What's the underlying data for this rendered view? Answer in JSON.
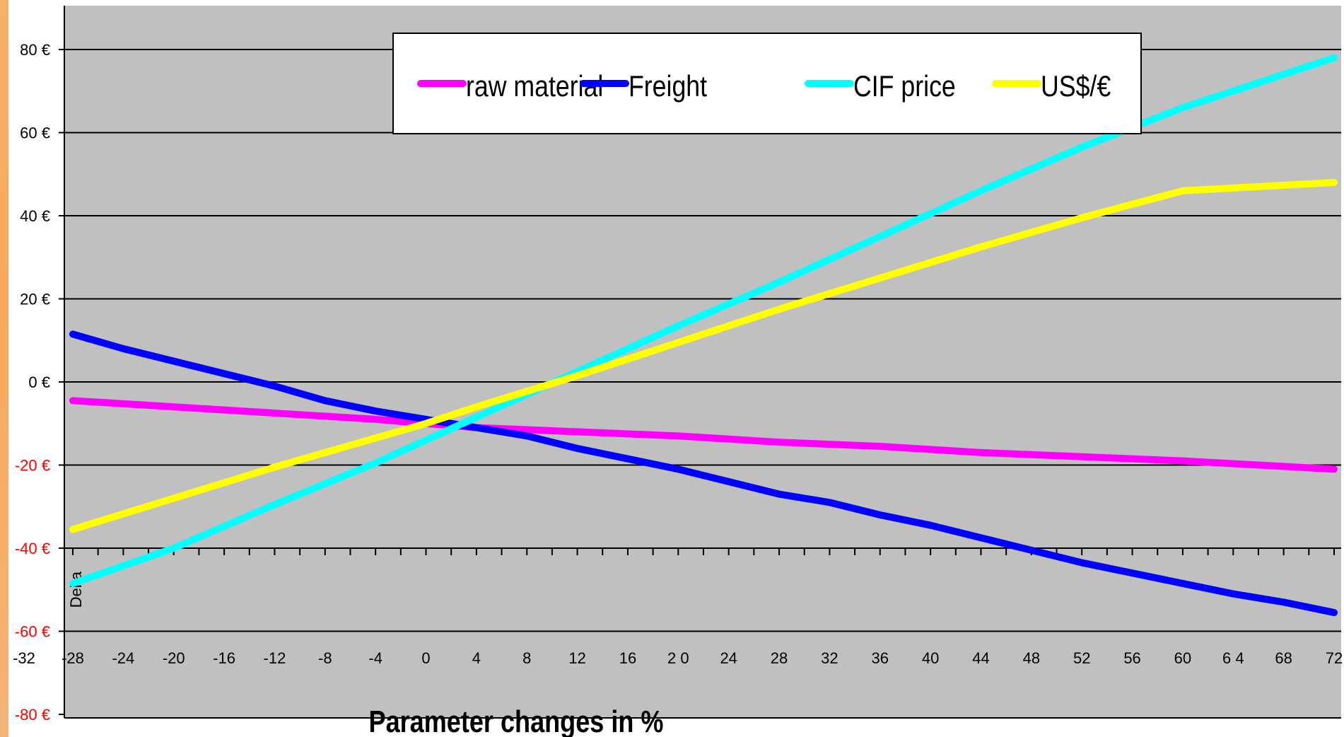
{
  "chart_data": {
    "type": "line",
    "title": "",
    "xlabel": "Parameter changes in %",
    "ylabel": "Delta",
    "x_ticks": [
      -32,
      -28,
      -24,
      -20,
      -16,
      -12,
      -8,
      -4,
      0,
      4,
      8,
      12,
      16,
      20,
      24,
      28,
      32,
      36,
      40,
      44,
      48,
      52,
      56,
      60,
      64,
      68,
      72
    ],
    "x_tick_labels": [
      "-32",
      "-28",
      "-24",
      "-20",
      "-16",
      "-12",
      "-8",
      "-4",
      "0",
      "4",
      "8",
      "12",
      "16",
      "2 0",
      "24",
      "28",
      "32",
      "36",
      "40",
      "44",
      "48",
      "52",
      "56",
      "60",
      "6 4",
      "68",
      "72"
    ],
    "xlim": [
      -28,
      72
    ],
    "y_ticks": [
      80,
      60,
      40,
      20,
      0,
      -20,
      -40,
      -60,
      -80
    ],
    "y_tick_labels": [
      "80 €",
      "60 €",
      "40 €",
      "20 €",
      "0 €",
      "-20 €",
      "-40 €",
      "-60 €",
      "-80 €"
    ],
    "ylim": [
      -80,
      80
    ],
    "y_tick_colors": {
      "positive": "#000000",
      "negative": "#ff0000"
    },
    "grid": true,
    "legend_position": "top-center",
    "plot_background": "#c0c0c0",
    "series": [
      {
        "name": "raw material",
        "color": "#ff00ff",
        "x": [
          -28,
          -20,
          -12,
          -4,
          0,
          4,
          12,
          20,
          28,
          36,
          44,
          52,
          60,
          72
        ],
        "y": [
          -4.5,
          -6,
          -7.5,
          -9,
          -10,
          -11,
          -12,
          -13,
          -14.5,
          -15.5,
          -17,
          -18,
          -19,
          -21
        ]
      },
      {
        "name": "Freight",
        "color": "#0000ff",
        "x": [
          -28,
          -24,
          -20,
          -16,
          -12,
          -8,
          -4,
          0,
          4,
          8,
          12,
          16,
          20,
          24,
          28,
          32,
          36,
          40,
          44,
          48,
          52,
          56,
          60,
          64,
          68,
          72
        ],
        "y": [
          11.5,
          8,
          5,
          2,
          -1,
          -4.5,
          -7,
          -9,
          -11,
          -13,
          -16,
          -18.5,
          -21,
          -24,
          -27,
          -29,
          -32,
          -34.5,
          -37.5,
          -40.5,
          -43.5,
          -46,
          -48.5,
          -51,
          -53,
          -55.5
        ]
      },
      {
        "name": "CIF price",
        "color": "#00ffff",
        "x": [
          -28,
          -20,
          -12,
          -4,
          0,
          4,
          12,
          20,
          28,
          36,
          44,
          52,
          60,
          72
        ],
        "y": [
          -48.5,
          -40,
          -29.5,
          -19.5,
          -14,
          -8.5,
          2.5,
          13.5,
          24,
          35,
          46,
          56.5,
          66,
          78
        ]
      },
      {
        "name": "US$/€",
        "color": "#ffff00",
        "x": [
          -28,
          -20,
          -12,
          -4,
          0,
          4,
          12,
          20,
          28,
          36,
          44,
          52,
          60,
          72
        ],
        "y": [
          -35.5,
          -28,
          -20.5,
          -13.5,
          -10,
          -6,
          1.5,
          9.5,
          17.5,
          25,
          32.5,
          39.5,
          46,
          48
        ]
      }
    ]
  }
}
